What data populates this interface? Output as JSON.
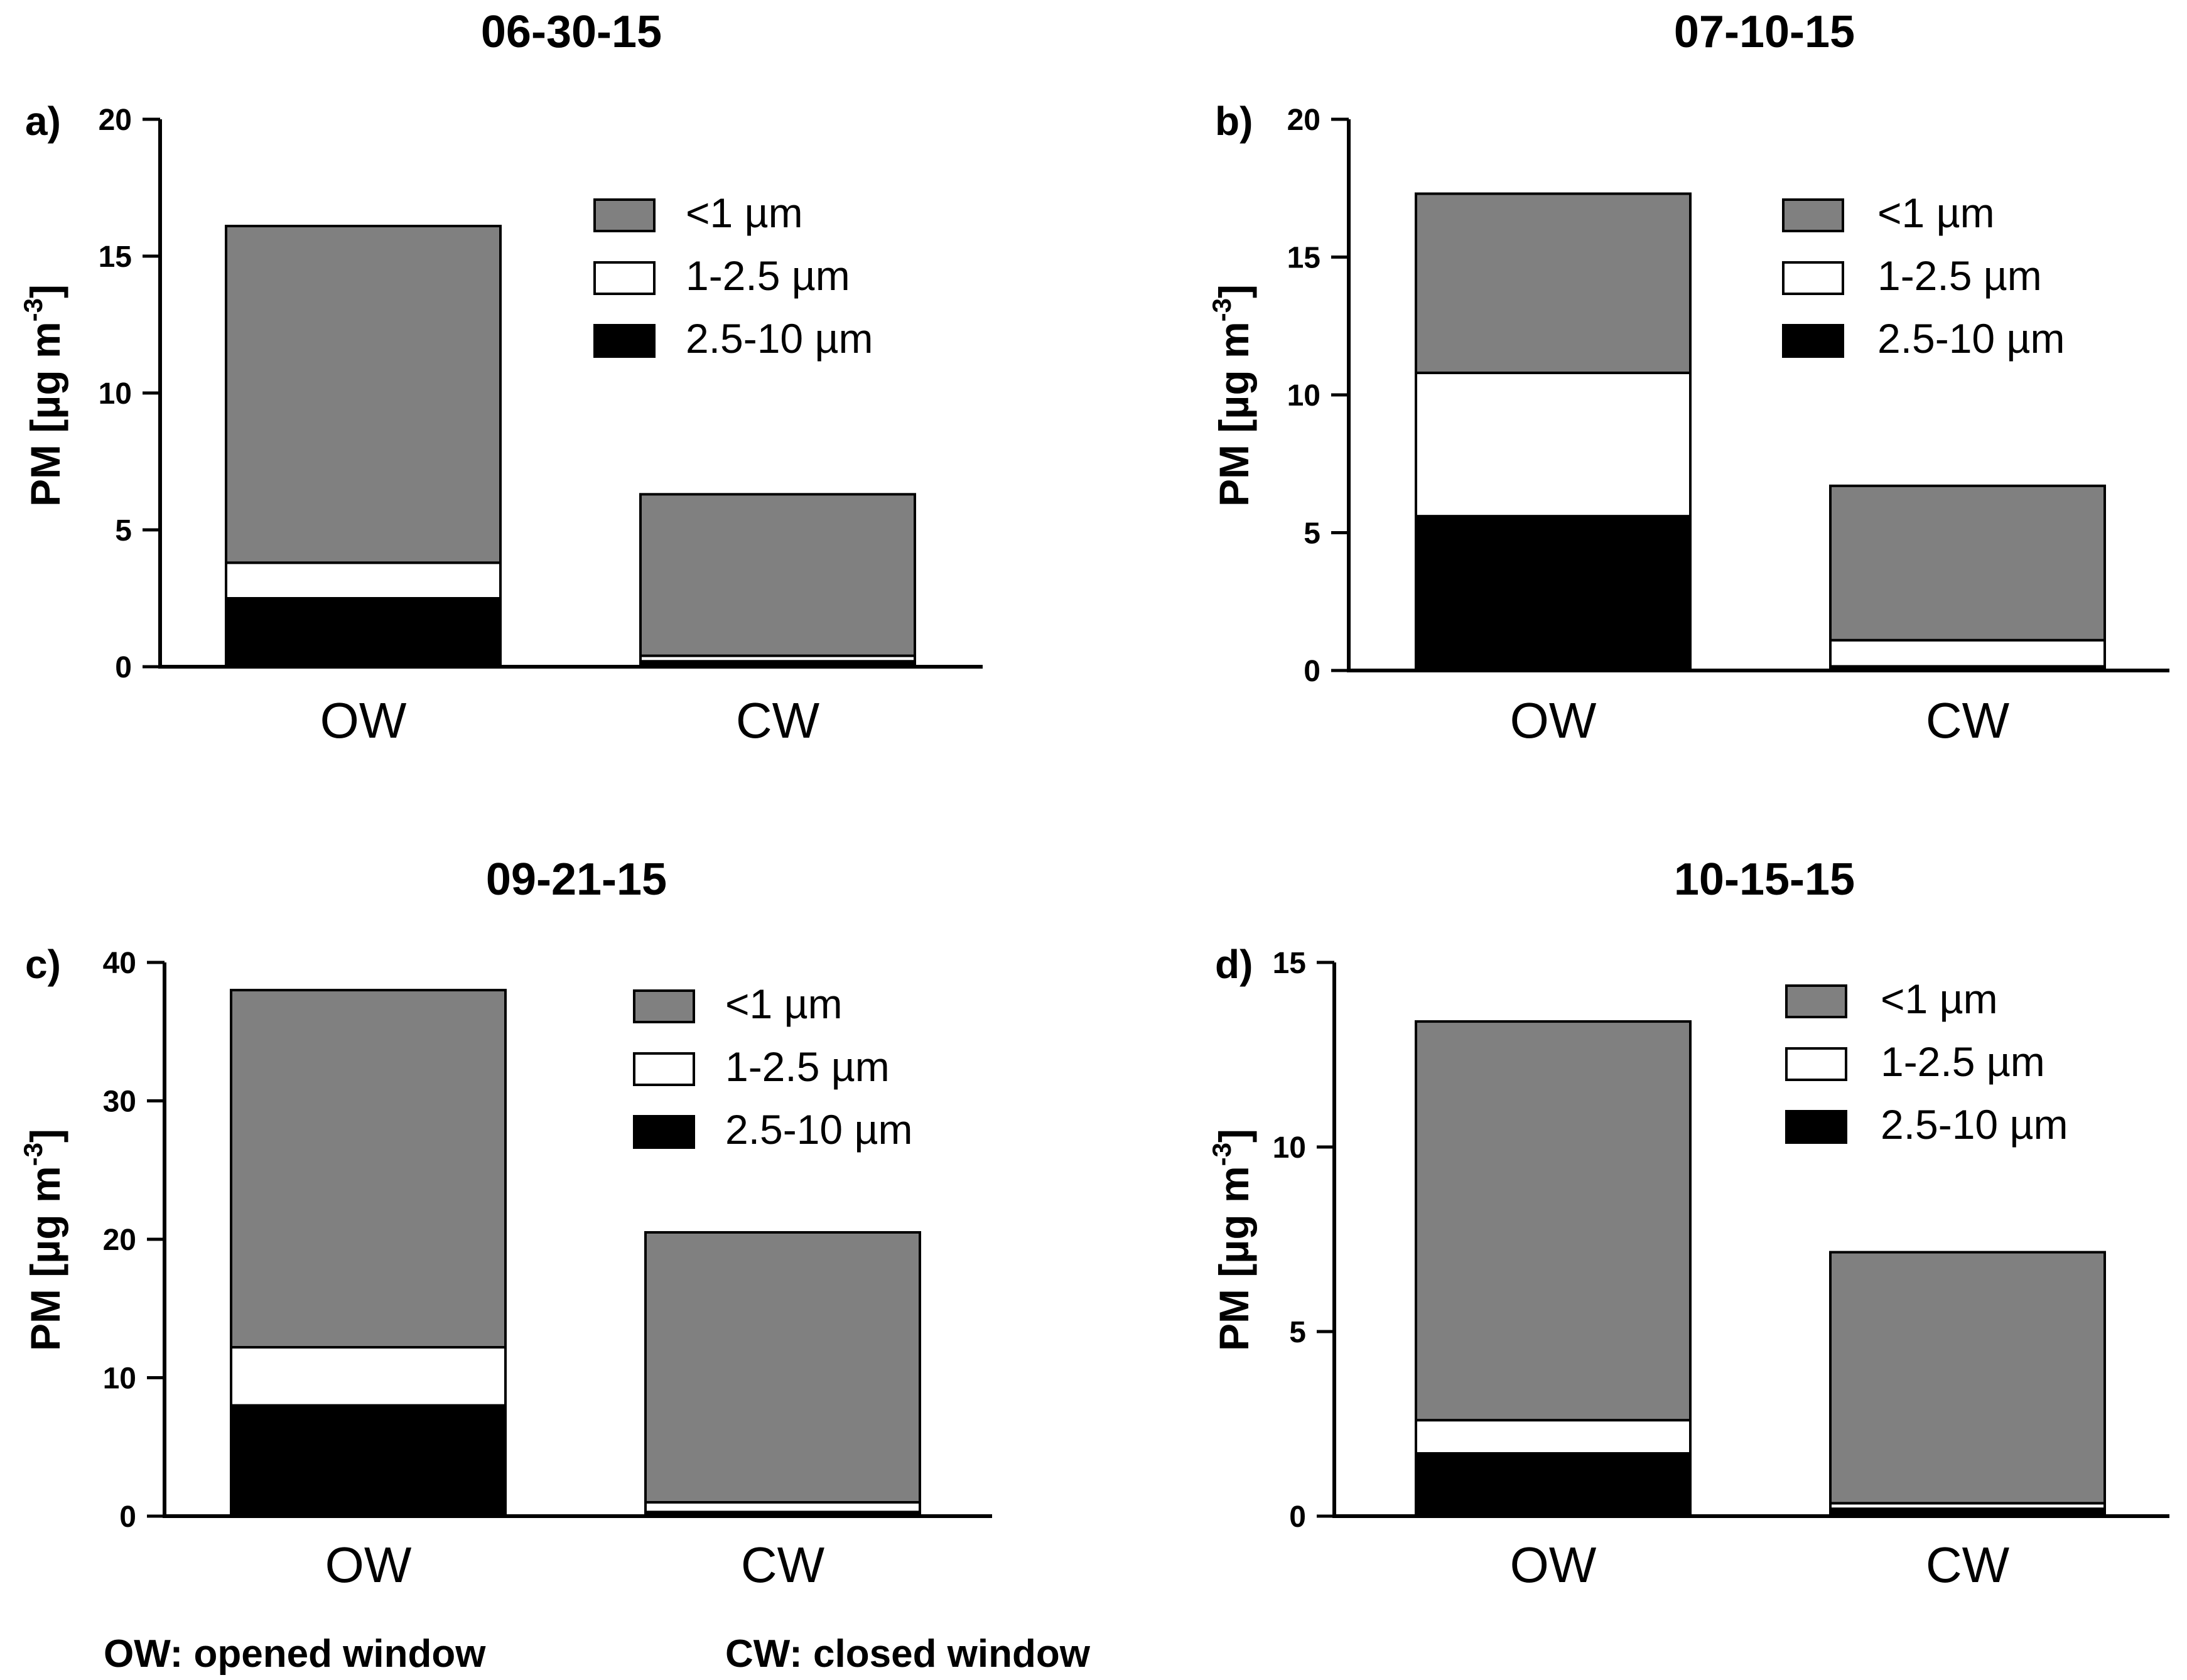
{
  "footnote": {
    "ow": "OW: opened window",
    "cw": "CW: closed window"
  },
  "colors": {
    "lt1": "#808080",
    "mid": "#ffffff",
    "coarse": "#000000",
    "stroke": "#000000"
  },
  "chart_data": [
    {
      "type": "bar",
      "stacked": true,
      "panel_label": "a)",
      "title": "06-30-15",
      "ylabel": "PM [µg m",
      "ylabel_sup": "-3",
      "ylabel_end": "]",
      "ylim": [
        0,
        20
      ],
      "yticks": [
        "0",
        "5",
        "10",
        "15",
        "20"
      ],
      "categories": [
        "OW",
        "CW"
      ],
      "series": [
        {
          "name": "2.5-10 µm",
          "key": "coarse",
          "values": [
            2.5,
            0.2
          ]
        },
        {
          "name": "1-2.5 µm",
          "key": "mid",
          "values": [
            1.3,
            0.2
          ]
        },
        {
          "name": "<1 µm",
          "key": "lt1",
          "values": [
            12.3,
            5.9
          ]
        }
      ],
      "legend": [
        "<1 µm",
        "1-2.5 µm",
        "2.5-10 µm"
      ]
    },
    {
      "type": "bar",
      "stacked": true,
      "panel_label": "b)",
      "title": "07-10-15",
      "ylabel": "PM [µg m",
      "ylabel_sup": "-3",
      "ylabel_end": "]",
      "ylim": [
        0,
        20
      ],
      "yticks": [
        "0",
        "5",
        "10",
        "15",
        "20"
      ],
      "categories": [
        "OW",
        "CW"
      ],
      "series": [
        {
          "name": "2.5-10 µm",
          "key": "coarse",
          "values": [
            5.6,
            0.15
          ]
        },
        {
          "name": "1-2.5 µm",
          "key": "mid",
          "values": [
            5.2,
            0.95
          ]
        },
        {
          "name": "<1 µm",
          "key": "lt1",
          "values": [
            6.5,
            5.6
          ]
        }
      ],
      "legend": [
        "<1 µm",
        "1-2.5 µm",
        "2.5-10 µm"
      ]
    },
    {
      "type": "bar",
      "stacked": true,
      "panel_label": "c)",
      "title": "09-21-15",
      "ylabel": "PM [µg m",
      "ylabel_sup": "-3",
      "ylabel_end": "]",
      "ylim": [
        0,
        40
      ],
      "yticks": [
        "0",
        "10",
        "20",
        "30",
        "40"
      ],
      "categories": [
        "OW",
        "CW"
      ],
      "series": [
        {
          "name": "2.5-10 µm",
          "key": "coarse",
          "values": [
            8.0,
            0.3
          ]
        },
        {
          "name": "1-2.5 µm",
          "key": "mid",
          "values": [
            4.2,
            0.7
          ]
        },
        {
          "name": "<1 µm",
          "key": "lt1",
          "values": [
            25.8,
            19.5
          ]
        }
      ],
      "legend": [
        "<1 µm",
        "1-2.5 µm",
        "2.5-10 µm"
      ]
    },
    {
      "type": "bar",
      "stacked": true,
      "panel_label": "d)",
      "title": "10-15-15",
      "ylabel": "PM [µg m",
      "ylabel_sup": "-3",
      "ylabel_end": "]",
      "ylim": [
        0,
        15
      ],
      "yticks": [
        "0",
        "5",
        "10",
        "15"
      ],
      "categories": [
        "OW",
        "CW"
      ],
      "series": [
        {
          "name": "2.5-10 µm",
          "key": "coarse",
          "values": [
            1.7,
            0.2
          ]
        },
        {
          "name": "1-2.5 µm",
          "key": "mid",
          "values": [
            0.9,
            0.15
          ]
        },
        {
          "name": "<1 µm",
          "key": "lt1",
          "values": [
            10.8,
            6.8
          ]
        }
      ],
      "legend": [
        "<1 µm",
        "1-2.5 µm",
        "2.5-10 µm"
      ]
    }
  ]
}
